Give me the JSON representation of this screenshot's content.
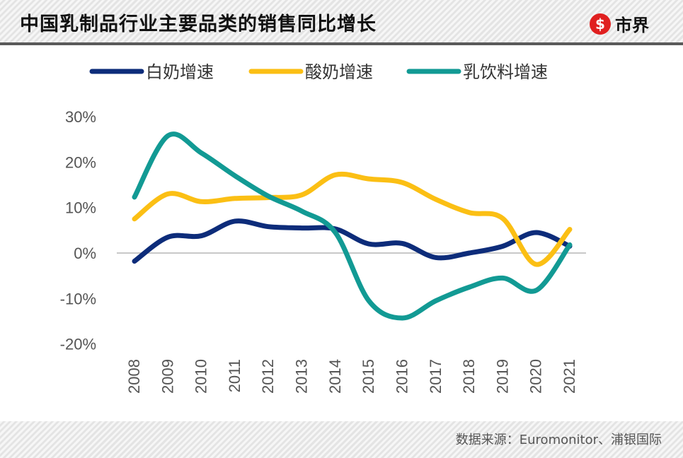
{
  "header": {
    "title": "中国乳制品行业主要品类的销售同比增长",
    "logo_mark": "$",
    "logo_text": "市界"
  },
  "footer": {
    "source": "数据来源：Euromonitor、浦银国际"
  },
  "chart_data": {
    "type": "line",
    "title": "中国乳制品行业主要品类的销售同比增长",
    "xlabel": "",
    "ylabel": "",
    "x": [
      "2008",
      "2009",
      "2010",
      "2011",
      "2012",
      "2013",
      "2014",
      "2015",
      "2016",
      "2017",
      "2018",
      "2019",
      "2020",
      "2021"
    ],
    "ylim": [
      -20,
      30
    ],
    "yticks": [
      30,
      20,
      10,
      0,
      -10,
      -20
    ],
    "ytick_labels": [
      "30%",
      "20%",
      "10%",
      "0%",
      "-10%",
      "-20%"
    ],
    "grid": false,
    "zero_line": true,
    "legend_position": "top",
    "series": [
      {
        "name": "白奶增速",
        "color": "#0d2c7a",
        "values": [
          -1.8,
          3.5,
          3.8,
          7.0,
          5.8,
          5.5,
          5.3,
          2.0,
          2.1,
          -1.0,
          0.0,
          1.5,
          4.5,
          1.5
        ]
      },
      {
        "name": "酸奶增速",
        "color": "#fbbf14",
        "values": [
          7.5,
          13.0,
          11.3,
          12.0,
          12.2,
          12.8,
          17.2,
          16.3,
          15.5,
          11.8,
          8.9,
          7.6,
          -2.5,
          5.2
        ]
      },
      {
        "name": "乳饮料增速",
        "color": "#129a94",
        "values": [
          12.3,
          25.8,
          22.0,
          17.0,
          12.5,
          9.2,
          4.5,
          -10.5,
          -14.3,
          -10.5,
          -7.5,
          -5.5,
          -8.2,
          1.8
        ]
      }
    ]
  }
}
